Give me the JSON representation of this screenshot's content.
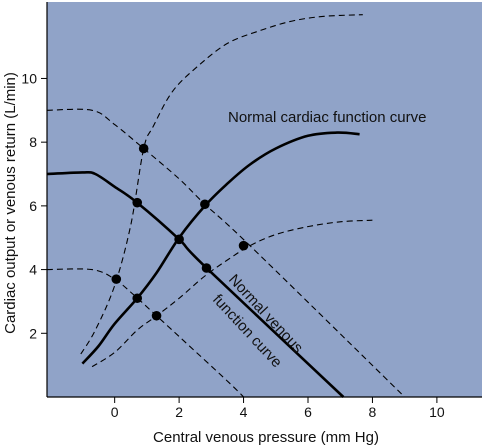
{
  "chart_data": {
    "type": "line",
    "title": "",
    "xlabel": "Central venous pressure (mm Hg)",
    "ylabel": "Cardiac output or venous return (L/min)",
    "xlim": [
      -2.1,
      11.4
    ],
    "ylim": [
      0,
      12.4
    ],
    "x_ticks": [
      0,
      2,
      4,
      6,
      8,
      10
    ],
    "y_ticks": [
      2,
      4,
      6,
      8,
      10
    ],
    "grid": false,
    "colors": {
      "plot_background": "#90a3c8",
      "line": "#000000",
      "page_background": "#ffffff"
    },
    "annotations": {
      "cardiac_function_curve": "Normal cardiac function curve",
      "venous_function_curve_line1": "Normal venous",
      "venous_function_curve_line2": "function curve"
    },
    "series": [
      {
        "name": "Normal cardiac function curve",
        "style": "solid",
        "points": [
          [
            -1,
            1.05
          ],
          [
            -0.5,
            1.6
          ],
          [
            0,
            2.3
          ],
          [
            0.7,
            3.1
          ],
          [
            1.3,
            3.9
          ],
          [
            2,
            5.0
          ],
          [
            2.8,
            6.0
          ],
          [
            3.5,
            6.7
          ],
          [
            4.2,
            7.3
          ],
          [
            5,
            7.8
          ],
          [
            6,
            8.2
          ],
          [
            6.9,
            8.3
          ],
          [
            7.6,
            8.25
          ]
        ]
      },
      {
        "name": "Normal venous function curve",
        "style": "solid",
        "points": [
          [
            -2.1,
            7.0
          ],
          [
            -1,
            7.05
          ],
          [
            -0.6,
            7.0
          ],
          [
            0,
            6.6
          ],
          [
            0.7,
            6.1
          ],
          [
            2,
            4.95
          ],
          [
            2.8,
            4.1
          ],
          [
            7.1,
            0
          ]
        ]
      },
      {
        "style": "dashed",
        "points": [
          [
            -1.05,
            1.35
          ],
          [
            -0.6,
            2.1
          ],
          [
            0,
            3.5
          ],
          [
            0.5,
            5.4
          ],
          [
            0.9,
            7.8
          ],
          [
            1.2,
            8.5
          ],
          [
            1.8,
            9.6
          ],
          [
            2.6,
            10.4
          ],
          [
            3.5,
            11.1
          ],
          [
            4.5,
            11.5
          ],
          [
            5.5,
            11.8
          ],
          [
            6.5,
            11.95
          ],
          [
            7.7,
            12.0
          ]
        ]
      },
      {
        "style": "dashed",
        "points": [
          [
            -0.7,
            0.95
          ],
          [
            0,
            1.4
          ],
          [
            0.7,
            2.1
          ],
          [
            1.3,
            2.55
          ],
          [
            2,
            3.1
          ],
          [
            2.8,
            3.8
          ],
          [
            3.5,
            4.3
          ],
          [
            4.2,
            4.75
          ],
          [
            5,
            5.1
          ],
          [
            6,
            5.35
          ],
          [
            7,
            5.5
          ],
          [
            8,
            5.55
          ]
        ]
      },
      {
        "style": "dashed",
        "points": [
          [
            -2.1,
            9.0
          ],
          [
            -0.7,
            9.0
          ],
          [
            0,
            8.55
          ],
          [
            0.9,
            7.8
          ],
          [
            2,
            6.85
          ],
          [
            2.8,
            6.05
          ],
          [
            4.2,
            4.75
          ],
          [
            9,
            0
          ]
        ]
      },
      {
        "style": "dashed",
        "points": [
          [
            -2.1,
            4.0
          ],
          [
            -0.7,
            4.0
          ],
          [
            0,
            3.7
          ],
          [
            0.6,
            3.2
          ],
          [
            1.3,
            2.55
          ],
          [
            2,
            1.9
          ],
          [
            3.5,
            0.5
          ],
          [
            4,
            0
          ]
        ]
      }
    ],
    "markers": [
      [
        0.9,
        7.8
      ],
      [
        0.7,
        6.1
      ],
      [
        2.8,
        6.05
      ],
      [
        2.0,
        4.95
      ],
      [
        4.0,
        4.75
      ],
      [
        0.05,
        3.7
      ],
      [
        2.85,
        4.05
      ],
      [
        0.7,
        3.1
      ],
      [
        1.3,
        2.55
      ]
    ]
  }
}
